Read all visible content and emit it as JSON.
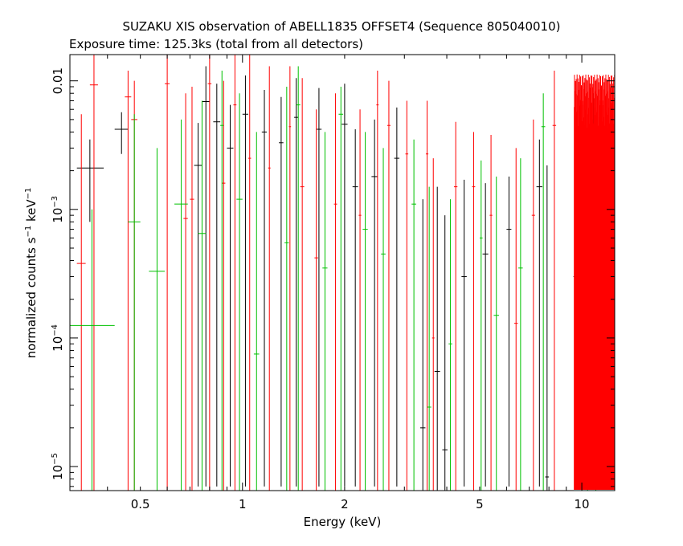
{
  "chart_data": {
    "type": "scatter",
    "title": "SUZAKU XIS observation of ABELL1835 OFFSET4 (Sequence 805040010)",
    "subtitle": "Exposure time: 125.3ks (total from all detectors)",
    "xlabel": "Energy (keV)",
    "ylabel_main": "normalized counts s",
    "ylabel_sup1": "−1",
    "ylabel_mid": " keV",
    "ylabel_sup2": "−1",
    "x_scale": "log",
    "y_scale": "log",
    "xlim": [
      0.31,
      12.5
    ],
    "ylim": [
      6.5e-06,
      0.016
    ],
    "x_ticks": [
      {
        "value": 0.5,
        "label": "0.5"
      },
      {
        "value": 1,
        "label": "1"
      },
      {
        "value": 2,
        "label": "2"
      },
      {
        "value": 5,
        "label": "5"
      },
      {
        "value": 10,
        "label": "10"
      }
    ],
    "y_ticks": [
      {
        "value": 1e-05,
        "mant": "10",
        "exp": "−5"
      },
      {
        "value": 0.0001,
        "mant": "10",
        "exp": "−4"
      },
      {
        "value": 0.001,
        "mant": "10",
        "exp": "−3"
      },
      {
        "value": 0.01,
        "mant": "0.01",
        "exp": ""
      }
    ],
    "series": [
      {
        "color": "#000000",
        "points": [
          {
            "x": 0.355,
            "xerr": [
              0.325,
              0.39
            ],
            "y": 0.0021,
            "yerr": [
              0.0008,
              0.0035
            ]
          },
          {
            "x": 0.44,
            "xerr": [
              0.42,
              0.46
            ],
            "y": 0.0042,
            "yerr": [
              0.0027,
              0.0057
            ]
          },
          {
            "x": 0.74,
            "xerr": [
              0.72,
              0.76
            ],
            "y": 0.0022,
            "yerr": [
              7e-06,
              0.0047
            ]
          },
          {
            "x": 0.78,
            "xerr": [
              0.76,
              0.8
            ],
            "y": 0.0069,
            "yerr": [
              7e-06,
              0.013
            ]
          },
          {
            "x": 0.84,
            "xerr": [
              0.82,
              0.86
            ],
            "y": 0.0048,
            "yerr": [
              7e-06,
              0.0095
            ]
          },
          {
            "x": 0.92,
            "xerr": [
              0.9,
              0.94
            ],
            "y": 0.003,
            "yerr": [
              7e-06,
              0.0065
            ]
          },
          {
            "x": 1.02,
            "xerr": [
              1,
              1.04
            ],
            "y": 0.0055,
            "yerr": [
              7e-06,
              0.011
            ]
          },
          {
            "x": 1.16,
            "xerr": [
              1.14,
              1.18
            ],
            "y": 0.004,
            "yerr": [
              7e-06,
              0.0085
            ]
          },
          {
            "x": 1.3,
            "xerr": [
              1.28,
              1.32
            ],
            "y": 0.0033,
            "yerr": [
              7e-06,
              0.0075
            ]
          },
          {
            "x": 1.44,
            "xerr": [
              1.42,
              1.46
            ],
            "y": 0.0052,
            "yerr": [
              7e-06,
              0.0105
            ]
          },
          {
            "x": 1.68,
            "xerr": [
              1.65,
              1.71
            ],
            "y": 0.0042,
            "yerr": [
              7e-06,
              0.0088
            ]
          },
          {
            "x": 2,
            "xerr": [
              1.96,
              2.04
            ],
            "y": 0.0046,
            "yerr": [
              7e-06,
              0.0095
            ]
          },
          {
            "x": 2.15,
            "xerr": [
              2.11,
              2.19
            ],
            "y": 0.0015,
            "yerr": [
              7e-06,
              0.0042
            ]
          },
          {
            "x": 2.45,
            "xerr": [
              2.4,
              2.5
            ],
            "y": 0.0018,
            "yerr": [
              7e-06,
              0.005
            ]
          },
          {
            "x": 2.85,
            "xerr": [
              2.8,
              2.9
            ],
            "y": 0.0025,
            "yerr": [
              7e-06,
              0.0062
            ]
          },
          {
            "x": 3.4,
            "xerr": [
              3.34,
              3.46
            ],
            "y": 2e-05,
            "yerr": [
              6.5e-06,
              0.0012
            ]
          },
          {
            "x": 3.75,
            "xerr": [
              3.68,
              3.82
            ],
            "y": 5.5e-05,
            "yerr": [
              6.5e-06,
              0.0015
            ]
          },
          {
            "x": 3.95,
            "xerr": [
              3.88,
              4.02
            ],
            "y": 1.35e-05,
            "yerr": [
              6.5e-06,
              0.0009
            ]
          },
          {
            "x": 4.5,
            "xerr": [
              4.42,
              4.58
            ],
            "y": 0.0003,
            "yerr": [
              7e-06,
              0.0017
            ]
          },
          {
            "x": 5.2,
            "xerr": [
              5.1,
              5.3
            ],
            "y": 0.00045,
            "yerr": [
              7e-06,
              0.0016
            ]
          },
          {
            "x": 6.1,
            "xerr": [
              6,
              6.2
            ],
            "y": 0.0007,
            "yerr": [
              7e-06,
              0.0018
            ]
          },
          {
            "x": 7.5,
            "xerr": [
              7.35,
              7.65
            ],
            "y": 0.0015,
            "yerr": [
              7e-06,
              0.0035
            ]
          },
          {
            "x": 7.9,
            "xerr": [
              7.8,
              8
            ],
            "y": 8.3e-06,
            "yerr": [
              6.5e-06,
              0.0022
            ]
          },
          {
            "x": 9.6,
            "xerr": [
              9.45,
              9.75
            ],
            "y": 0.0003,
            "yerr": [
              7e-06,
              0.003
            ]
          },
          {
            "x": 10.8,
            "xerr": [
              10.65,
              10.95
            ],
            "y": 0.0025,
            "yerr": [
              7e-06,
              0.008
            ]
          }
        ]
      },
      {
        "color": "#ff0000",
        "points": [
          {
            "x": 0.335,
            "xerr": [
              0.325,
              0.345
            ],
            "y": 0.00038,
            "yerr": [
              6.5e-06,
              0.0055
            ]
          },
          {
            "x": 0.365,
            "xerr": [
              0.355,
              0.375
            ],
            "y": 0.0093,
            "yerr": [
              6.5e-06,
              0.016
            ]
          },
          {
            "x": 0.46,
            "xerr": [
              0.45,
              0.47
            ],
            "y": 0.0075,
            "yerr": [
              6.5e-06,
              0.012
            ]
          },
          {
            "x": 0.48,
            "xerr": [
              0.47,
              0.49
            ],
            "y": 0.005,
            "yerr": [
              6.5e-06,
              0.01
            ]
          },
          {
            "x": 0.6,
            "xerr": [
              0.59,
              0.61
            ],
            "y": 0.0095,
            "yerr": [
              6.5e-06,
              0.016
            ]
          },
          {
            "x": 0.68,
            "xerr": [
              0.67,
              0.69
            ],
            "y": 0.00085,
            "yerr": [
              6.5e-06,
              0.008
            ]
          },
          {
            "x": 0.71,
            "xerr": [
              0.7,
              0.72
            ],
            "y": 0.0012,
            "yerr": [
              6.5e-06,
              0.009
            ]
          },
          {
            "x": 0.8,
            "xerr": [
              0.79,
              0.81
            ],
            "y": 0.0095,
            "yerr": [
              6.5e-06,
              0.016
            ]
          },
          {
            "x": 0.88,
            "xerr": [
              0.87,
              0.89
            ],
            "y": 0.0016,
            "yerr": [
              6.5e-06,
              0.01
            ]
          },
          {
            "x": 0.95,
            "xerr": [
              0.94,
              0.96
            ],
            "y": 0.0065,
            "yerr": [
              6.5e-06,
              0.016
            ]
          },
          {
            "x": 1.05,
            "xerr": [
              1.04,
              1.06
            ],
            "y": 0.0025,
            "yerr": [
              6.5e-06,
              0.016
            ]
          },
          {
            "x": 1.2,
            "xerr": [
              1.19,
              1.21
            ],
            "y": 0.0021,
            "yerr": [
              6.5e-06,
              0.013
            ]
          },
          {
            "x": 1.38,
            "xerr": [
              1.37,
              1.39
            ],
            "y": 0.0044,
            "yerr": [
              6.5e-06,
              0.013
            ]
          },
          {
            "x": 1.5,
            "xerr": [
              1.48,
              1.52
            ],
            "y": 0.0015,
            "yerr": [
              6.5e-06,
              0.0105
            ]
          },
          {
            "x": 1.65,
            "xerr": [
              1.63,
              1.67
            ],
            "y": 0.00042,
            "yerr": [
              6.5e-06,
              0.006
            ]
          },
          {
            "x": 1.88,
            "xerr": [
              1.86,
              1.9
            ],
            "y": 0.0011,
            "yerr": [
              6.5e-06,
              0.008
            ]
          },
          {
            "x": 2.22,
            "xerr": [
              2.2,
              2.24
            ],
            "y": 0.0009,
            "yerr": [
              6.5e-06,
              0.006
            ]
          },
          {
            "x": 2.5,
            "xerr": [
              2.48,
              2.52
            ],
            "y": 0.0065,
            "yerr": [
              6.5e-06,
              0.012
            ]
          },
          {
            "x": 2.7,
            "xerr": [
              2.67,
              2.73
            ],
            "y": 0.0045,
            "yerr": [
              6.5e-06,
              0.01
            ]
          },
          {
            "x": 3.05,
            "xerr": [
              3.02,
              3.08
            ],
            "y": 0.0027,
            "yerr": [
              6.5e-06,
              0.007
            ]
          },
          {
            "x": 3.5,
            "xerr": [
              3.47,
              3.53
            ],
            "y": 0.0027,
            "yerr": [
              6.5e-06,
              0.007
            ]
          },
          {
            "x": 3.65,
            "xerr": [
              3.62,
              3.68
            ],
            "y": 0.0001,
            "yerr": [
              6.5e-06,
              0.0025
            ]
          },
          {
            "x": 4.25,
            "xerr": [
              4.2,
              4.3
            ],
            "y": 0.0015,
            "yerr": [
              6.5e-06,
              0.0048
            ]
          },
          {
            "x": 4.8,
            "xerr": [
              4.75,
              4.85
            ],
            "y": 0.0015,
            "yerr": [
              6.5e-06,
              0.004
            ]
          },
          {
            "x": 5.4,
            "xerr": [
              5.35,
              5.45
            ],
            "y": 0.0009,
            "yerr": [
              6.5e-06,
              0.0038
            ]
          },
          {
            "x": 6.4,
            "xerr": [
              6.32,
              6.48
            ],
            "y": 0.00013,
            "yerr": [
              6.5e-06,
              0.003
            ]
          },
          {
            "x": 7.2,
            "xerr": [
              7.12,
              7.28
            ],
            "y": 0.0009,
            "yerr": [
              6.5e-06,
              0.005
            ]
          },
          {
            "x": 8.3,
            "xerr": [
              8.2,
              8.4
            ],
            "y": 0.0045,
            "yerr": [
              6.5e-06,
              0.012
            ]
          }
        ]
      },
      {
        "color": "#00c000",
        "points": [
          {
            "x": 0.36,
            "xerr": [
              0.31,
              0.42
            ],
            "y": 0.000125,
            "yerr": [
              6.5e-06,
              0.001
            ]
          },
          {
            "x": 0.48,
            "xerr": [
              0.46,
              0.5
            ],
            "y": 0.0008,
            "yerr": [
              6.5e-06,
              0.0055
            ]
          },
          {
            "x": 0.56,
            "xerr": [
              0.53,
              0.59
            ],
            "y": 0.00033,
            "yerr": [
              6.5e-06,
              0.003
            ]
          },
          {
            "x": 0.66,
            "xerr": [
              0.63,
              0.69
            ],
            "y": 0.0011,
            "yerr": [
              6.5e-06,
              0.005
            ]
          },
          {
            "x": 0.76,
            "xerr": [
              0.74,
              0.78
            ],
            "y": 0.00065,
            "yerr": [
              6.5e-06,
              0.007
            ]
          },
          {
            "x": 0.87,
            "xerr": [
              0.86,
              0.88
            ],
            "y": 0.0045,
            "yerr": [
              6.5e-06,
              0.012
            ]
          },
          {
            "x": 0.98,
            "xerr": [
              0.96,
              1
            ],
            "y": 0.0012,
            "yerr": [
              6.5e-06,
              0.008
            ]
          },
          {
            "x": 1.1,
            "xerr": [
              1.08,
              1.12
            ],
            "y": 7.5e-05,
            "yerr": [
              6.5e-06,
              0.004
            ]
          },
          {
            "x": 1.35,
            "xerr": [
              1.33,
              1.37
            ],
            "y": 0.00055,
            "yerr": [
              6.5e-06,
              0.009
            ]
          },
          {
            "x": 1.46,
            "xerr": [
              1.44,
              1.48
            ],
            "y": 0.0065,
            "yerr": [
              6.5e-06,
              0.013
            ]
          },
          {
            "x": 1.75,
            "xerr": [
              1.72,
              1.78
            ],
            "y": 0.00035,
            "yerr": [
              6.5e-06,
              0.004
            ]
          },
          {
            "x": 1.95,
            "xerr": [
              1.92,
              1.98
            ],
            "y": 0.0055,
            "yerr": [
              6.5e-06,
              0.009
            ]
          },
          {
            "x": 2.3,
            "xerr": [
              2.26,
              2.34
            ],
            "y": 0.0007,
            "yerr": [
              6.5e-06,
              0.004
            ]
          },
          {
            "x": 2.6,
            "xerr": [
              2.56,
              2.64
            ],
            "y": 0.00045,
            "yerr": [
              6.5e-06,
              0.003
            ]
          },
          {
            "x": 3.2,
            "xerr": [
              3.15,
              3.25
            ],
            "y": 0.0011,
            "yerr": [
              6.5e-06,
              0.0035
            ]
          },
          {
            "x": 3.55,
            "xerr": [
              3.5,
              3.6
            ],
            "y": 2.9e-05,
            "yerr": [
              6.5e-06,
              0.0015
            ]
          },
          {
            "x": 4.1,
            "xerr": [
              4.05,
              4.15
            ],
            "y": 9e-05,
            "yerr": [
              6.5e-06,
              0.0012
            ]
          },
          {
            "x": 5.05,
            "xerr": [
              5,
              5.1
            ],
            "y": 0.0006,
            "yerr": [
              6.5e-06,
              0.0024
            ]
          },
          {
            "x": 5.6,
            "xerr": [
              5.5,
              5.7
            ],
            "y": 0.00015,
            "yerr": [
              6.5e-06,
              0.0018
            ]
          },
          {
            "x": 6.6,
            "xerr": [
              6.5,
              6.7
            ],
            "y": 0.00035,
            "yerr": [
              6.5e-06,
              0.0025
            ]
          },
          {
            "x": 7.7,
            "xerr": [
              7.6,
              7.8
            ],
            "y": 0.0044,
            "yerr": [
              6.5e-06,
              0.008
            ]
          },
          {
            "x": 10.4,
            "xerr": [
              10.3,
              10.5
            ],
            "y": 0.0004,
            "yerr": [
              6.5e-06,
              0.002
            ]
          },
          {
            "x": 11,
            "xerr": [
              10.9,
              11.1
            ],
            "y": 9e-05,
            "yerr": [
              6.5e-06,
              0.0015
            ]
          }
        ]
      }
    ]
  }
}
